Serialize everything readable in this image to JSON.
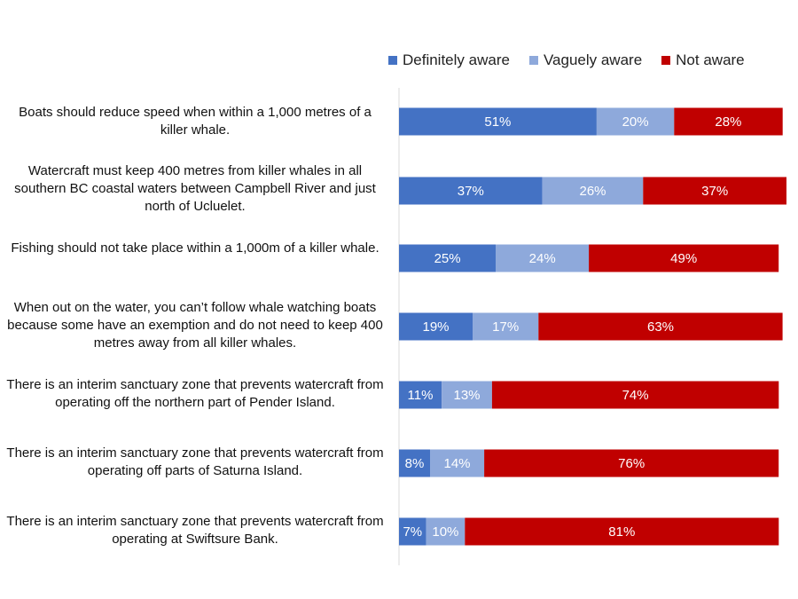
{
  "chart_data": {
    "type": "bar",
    "orientation": "horizontal",
    "stacked": true,
    "title": "",
    "xlabel": "",
    "ylabel": "",
    "xlim": [
      0,
      100
    ],
    "grid": false,
    "legend_position": "top-right",
    "categories": [
      "Boats should reduce speed when within a 1,000 metres of a killer whale.",
      "Watercraft must keep 400 metres from killer whales in all southern BC coastal waters between Campbell River and just north of Ucluelet.",
      "Fishing should not take place within a 1,000m of a killer whale.",
      "When out on the water, you can’t follow whale watching boats because some have an exemption and do not need to keep 400 metres away from all killer whales.",
      "There is an interim sanctuary zone that prevents watercraft from operating off the northern part of Pender Island.",
      "There is an interim sanctuary zone that prevents watercraft from operating off parts of Saturna Island.",
      "There is an interim sanctuary zone that prevents watercraft from operating at Swiftsure Bank."
    ],
    "series": [
      {
        "name": "Definitely aware",
        "color": "#4472C4",
        "values": [
          51,
          37,
          25,
          19,
          11,
          8,
          7
        ]
      },
      {
        "name": "Vaguely aware",
        "color": "#8EA9DB",
        "values": [
          20,
          26,
          24,
          17,
          13,
          14,
          10
        ]
      },
      {
        "name": "Not aware",
        "color": "#C00000",
        "values": [
          28,
          37,
          49,
          63,
          74,
          76,
          81
        ]
      }
    ],
    "value_suffix": "%"
  },
  "colors": {
    "axis": "#d9d9d9",
    "data_label": "#ffffff"
  }
}
